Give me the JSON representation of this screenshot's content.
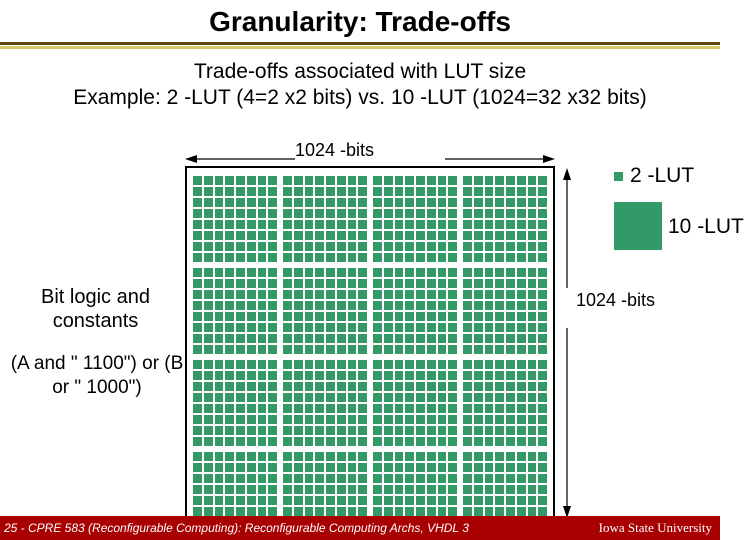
{
  "title": "Granularity: Trade-offs",
  "subtitle_line1": "Trade-offs associated with LUT size",
  "subtitle_line2": "Example: 2 -LUT (4=2 x2 bits) vs. 10 -LUT (1024=32 x32 bits)",
  "width_label": "1024 -bits",
  "height_label": "1024 -bits",
  "legend": {
    "lut2": "2 -LUT",
    "lut10": "10 -LUT"
  },
  "left_block1": "Bit logic and constants",
  "left_block2": "(A and \" 1100\") or (B or \" 1000\")",
  "footer_left": "25 - CPRE 583 (Reconfigurable Computing):  Reconfigurable Computing Archs, VHDL 3",
  "footer_right": "Iowa State University",
  "colors": {
    "cell": "#339966",
    "footer_bg": "#a80000",
    "underline_dark": "#5a4a00",
    "underline_light": "#d9c96a"
  },
  "grid": {
    "major": 4,
    "minor": 8
  }
}
